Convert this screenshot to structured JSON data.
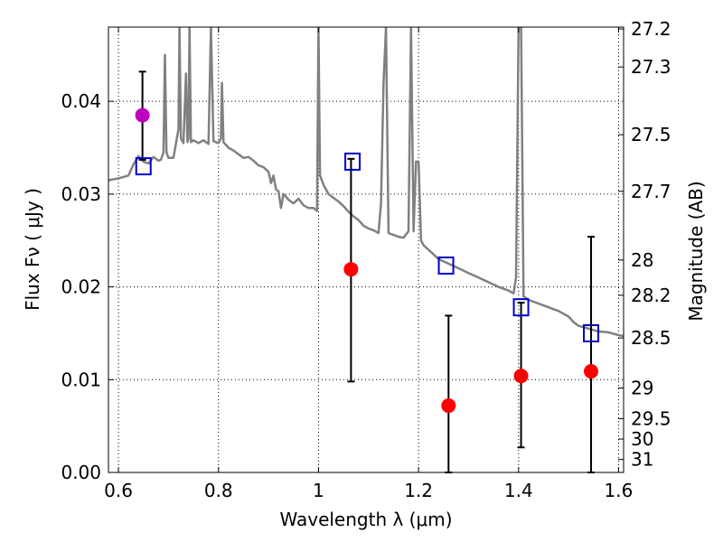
{
  "chart_data": {
    "type": "scatter",
    "xlabel": "Wavelength  λ (μm)",
    "ylabel": "Flux  Fν  ( μJy )",
    "ylabel_right": "Magnitude (AB)",
    "xlim": [
      0.58,
      1.61
    ],
    "ylim": [
      0.0,
      0.048
    ],
    "x_ticks": [
      0.6,
      0.8,
      1.0,
      1.2,
      1.4,
      1.6
    ],
    "x_tick_labels": [
      "0.6",
      "0.8",
      "1",
      "1.2",
      "1.4",
      "1.6"
    ],
    "y_ticks": [
      0.0,
      0.01,
      0.02,
      0.03,
      0.04
    ],
    "y_tick_labels": [
      "0.00",
      "0.01",
      "0.02",
      "0.03",
      "0.04"
    ],
    "right_ticks": [
      {
        "label": "27.2",
        "flux": 0.0478
      },
      {
        "label": "27.3",
        "flux": 0.0437
      },
      {
        "label": "27.5",
        "flux": 0.0364
      },
      {
        "label": "27.7",
        "flux": 0.0303
      },
      {
        "label": "28",
        "flux": 0.0229
      },
      {
        "label": "28.2",
        "flux": 0.0191
      },
      {
        "label": "28.5",
        "flux": 0.0145
      },
      {
        "label": "29",
        "flux": 0.0091
      },
      {
        "label": "29.5",
        "flux": 0.0058
      },
      {
        "label": "30",
        "flux": 0.0036
      },
      {
        "label": "31",
        "flux": 0.0014
      }
    ],
    "grid": true,
    "colors": {
      "model": "#808080",
      "observed": "#ff0000",
      "detected": "#bf00bf",
      "synthetic": "#0000cc",
      "errorbar": "#000000"
    },
    "model_spectrum": [
      [
        0.58,
        0.0315
      ],
      [
        0.6,
        0.0317
      ],
      [
        0.62,
        0.032
      ],
      [
        0.63,
        0.0332
      ],
      [
        0.64,
        0.0341
      ],
      [
        0.65,
        0.0335
      ],
      [
        0.66,
        0.0333
      ],
      [
        0.67,
        0.034
      ],
      [
        0.68,
        0.0336
      ],
      [
        0.685,
        0.0337
      ],
      [
        0.69,
        0.0345
      ],
      [
        0.693,
        0.045
      ],
      [
        0.696,
        0.0345
      ],
      [
        0.7,
        0.0339
      ],
      [
        0.71,
        0.0339
      ],
      [
        0.72,
        0.037
      ],
      [
        0.722,
        0.048
      ],
      [
        0.725,
        0.036
      ],
      [
        0.73,
        0.0355
      ],
      [
        0.735,
        0.043
      ],
      [
        0.738,
        0.0356
      ],
      [
        0.74,
        0.036
      ],
      [
        0.742,
        0.048
      ],
      [
        0.745,
        0.0356
      ],
      [
        0.75,
        0.0358
      ],
      [
        0.76,
        0.0355
      ],
      [
        0.77,
        0.0358
      ],
      [
        0.78,
        0.0354
      ],
      [
        0.785,
        0.048
      ],
      [
        0.79,
        0.0357
      ],
      [
        0.8,
        0.0355
      ],
      [
        0.805,
        0.036
      ],
      [
        0.807,
        0.042
      ],
      [
        0.81,
        0.0356
      ],
      [
        0.82,
        0.035
      ],
      [
        0.83,
        0.0347
      ],
      [
        0.84,
        0.0343
      ],
      [
        0.85,
        0.0339
      ],
      [
        0.86,
        0.034
      ],
      [
        0.87,
        0.0336
      ],
      [
        0.88,
        0.0331
      ],
      [
        0.89,
        0.0329
      ],
      [
        0.9,
        0.0324
      ],
      [
        0.905,
        0.0312
      ],
      [
        0.91,
        0.032
      ],
      [
        0.915,
        0.0305
      ],
      [
        0.92,
        0.0303
      ],
      [
        0.925,
        0.0285
      ],
      [
        0.93,
        0.03
      ],
      [
        0.94,
        0.0294
      ],
      [
        0.95,
        0.029
      ],
      [
        0.96,
        0.0295
      ],
      [
        0.97,
        0.0288
      ],
      [
        0.98,
        0.0285
      ],
      [
        0.99,
        0.0285
      ],
      [
        0.997,
        0.0282
      ],
      [
        1.0,
        0.048
      ],
      [
        1.003,
        0.032
      ],
      [
        1.01,
        0.031
      ],
      [
        1.02,
        0.03
      ],
      [
        1.03,
        0.0296
      ],
      [
        1.04,
        0.0292
      ],
      [
        1.05,
        0.0287
      ],
      [
        1.06,
        0.0281
      ],
      [
        1.07,
        0.0276
      ],
      [
        1.08,
        0.0272
      ],
      [
        1.09,
        0.0266
      ],
      [
        1.1,
        0.0263
      ],
      [
        1.11,
        0.0261
      ],
      [
        1.12,
        0.0258
      ],
      [
        1.125,
        0.029
      ],
      [
        1.13,
        0.042
      ],
      [
        1.135,
        0.048
      ],
      [
        1.14,
        0.0258
      ],
      [
        1.15,
        0.0256
      ],
      [
        1.16,
        0.0254
      ],
      [
        1.17,
        0.0253
      ],
      [
        1.18,
        0.026
      ],
      [
        1.185,
        0.048
      ],
      [
        1.19,
        0.026
      ],
      [
        1.195,
        0.0335
      ],
      [
        1.2,
        0.0335
      ],
      [
        1.205,
        0.025
      ],
      [
        1.21,
        0.0245
      ],
      [
        1.22,
        0.024
      ],
      [
        1.23,
        0.0235
      ],
      [
        1.24,
        0.023
      ],
      [
        1.26,
        0.0225
      ],
      [
        1.28,
        0.022
      ],
      [
        1.3,
        0.0215
      ],
      [
        1.32,
        0.021
      ],
      [
        1.34,
        0.0205
      ],
      [
        1.36,
        0.02
      ],
      [
        1.38,
        0.0196
      ],
      [
        1.39,
        0.0193
      ],
      [
        1.395,
        0.021
      ],
      [
        1.4,
        0.048
      ],
      [
        1.405,
        0.048
      ],
      [
        1.41,
        0.019
      ],
      [
        1.42,
        0.0186
      ],
      [
        1.44,
        0.0182
      ],
      [
        1.46,
        0.0178
      ],
      [
        1.48,
        0.0174
      ],
      [
        1.5,
        0.0168
      ],
      [
        1.51,
        0.0162
      ],
      [
        1.52,
        0.0158
      ],
      [
        1.54,
        0.0155
      ],
      [
        1.56,
        0.0152
      ],
      [
        1.58,
        0.0151
      ],
      [
        1.6,
        0.0148
      ],
      [
        1.61,
        0.0147
      ]
    ],
    "observed": [
      {
        "x": 1.065,
        "y": 0.0219,
        "lo": 0.0098,
        "hi": 0.0338
      },
      {
        "x": 1.26,
        "y": 0.0072,
        "lo": 0.0,
        "hi": 0.0169
      },
      {
        "x": 1.405,
        "y": 0.0104,
        "lo": 0.0027,
        "hi": 0.0183
      },
      {
        "x": 1.545,
        "y": 0.0109,
        "lo": 0.0,
        "hi": 0.0254
      }
    ],
    "detected": [
      {
        "x": 0.648,
        "y": 0.0385,
        "lo": 0.0337,
        "hi": 0.0432
      }
    ],
    "synthetic": [
      {
        "x": 0.65,
        "y": 0.033
      },
      {
        "x": 1.068,
        "y": 0.0335
      },
      {
        "x": 1.255,
        "y": 0.0223
      },
      {
        "x": 1.405,
        "y": 0.0178
      },
      {
        "x": 1.545,
        "y": 0.015
      }
    ]
  }
}
